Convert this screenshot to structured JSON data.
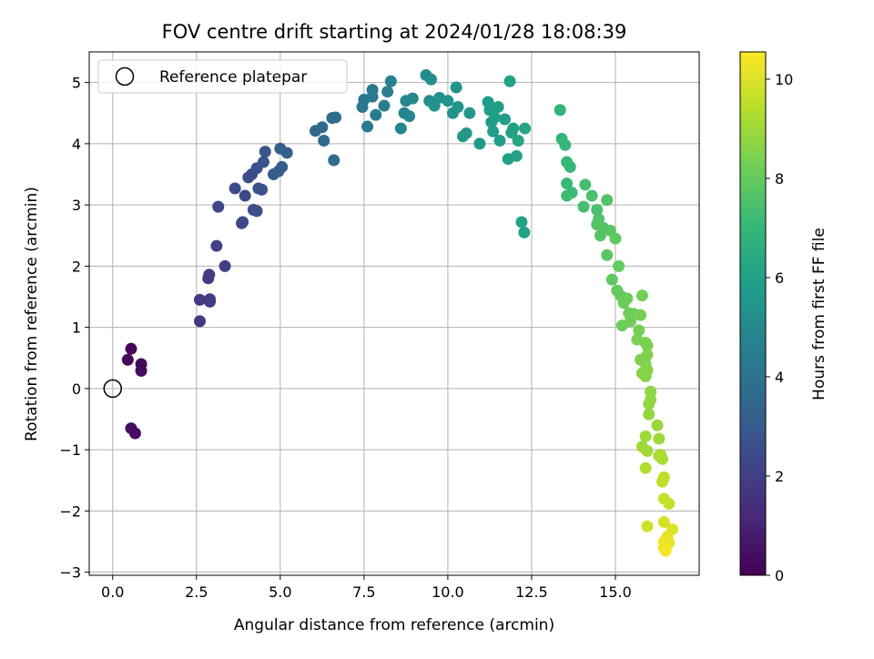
{
  "chart_data": {
    "type": "scatter",
    "title": "FOV centre drift starting at 2024/01/28 18:08:39",
    "xlabel": "Angular distance from reference (arcmin)",
    "ylabel": "Rotation from reference (arcmin)",
    "xlim": [
      -0.7,
      17.5
    ],
    "ylim": [
      -3.05,
      5.5
    ],
    "xticks": [
      0.0,
      2.5,
      5.0,
      7.5,
      10.0,
      12.5,
      15.0
    ],
    "xtick_labels": [
      "0.0",
      "2.5",
      "5.0",
      "7.5",
      "10.0",
      "12.5",
      "15.0"
    ],
    "yticks": [
      -3,
      -2,
      -1,
      0,
      1,
      2,
      3,
      4,
      5
    ],
    "ytick_labels": [
      "−3",
      "−2",
      "−1",
      "0",
      "1",
      "2",
      "3",
      "4",
      "5"
    ],
    "grid": true,
    "legend": {
      "position": "top-left",
      "label": "Reference platepar"
    },
    "reference_point": {
      "x": 0,
      "y": 0
    },
    "colorbar": {
      "label": "Hours from first FF file",
      "min": 0,
      "max": 10.55,
      "ticks": [
        0,
        2,
        4,
        6,
        8,
        10
      ],
      "tick_labels": [
        "0",
        "2",
        "4",
        "6",
        "8",
        "10"
      ],
      "colormap": "viridis",
      "colormap_stops": [
        "#440154",
        "#482878",
        "#3e4989",
        "#31688e",
        "#26828e",
        "#1f9e89",
        "#35b779",
        "#6ece58",
        "#b5de2b",
        "#fde725"
      ]
    },
    "points": [
      [
        0.55,
        0.65,
        0.2
      ],
      [
        0.45,
        0.47,
        0.2
      ],
      [
        0.85,
        0.4,
        0.3
      ],
      [
        0.85,
        0.29,
        0.3
      ],
      [
        0.55,
        -0.65,
        0.35
      ],
      [
        0.67,
        -0.73,
        0.4
      ],
      [
        2.6,
        1.1,
        1.8
      ],
      [
        2.6,
        1.45,
        1.8
      ],
      [
        2.9,
        1.42,
        1.9
      ],
      [
        2.9,
        1.46,
        1.9
      ],
      [
        2.85,
        1.8,
        1.9
      ],
      [
        2.88,
        1.86,
        1.9
      ],
      [
        3.35,
        2.0,
        2.0
      ],
      [
        3.1,
        2.33,
        2.1
      ],
      [
        3.15,
        2.97,
        2.2
      ],
      [
        3.85,
        2.7,
        2.3
      ],
      [
        3.88,
        2.72,
        2.3
      ],
      [
        3.65,
        3.27,
        2.4
      ],
      [
        3.95,
        3.15,
        2.4
      ],
      [
        4.05,
        3.45,
        2.5
      ],
      [
        4.15,
        3.5,
        2.5
      ],
      [
        4.3,
        3.6,
        2.6
      ],
      [
        4.2,
        2.92,
        2.5
      ],
      [
        4.3,
        2.9,
        2.6
      ],
      [
        4.35,
        3.27,
        2.7
      ],
      [
        4.45,
        3.25,
        2.7
      ],
      [
        4.5,
        3.7,
        2.8
      ],
      [
        4.55,
        3.87,
        2.8
      ],
      [
        4.8,
        3.5,
        3.0
      ],
      [
        4.95,
        3.55,
        3.1
      ],
      [
        5.05,
        3.62,
        3.1
      ],
      [
        5.0,
        3.92,
        3.1
      ],
      [
        5.2,
        3.85,
        3.2
      ],
      [
        6.05,
        4.21,
        3.5
      ],
      [
        6.25,
        4.27,
        3.6
      ],
      [
        6.3,
        4.05,
        3.6
      ],
      [
        6.55,
        4.42,
        3.7
      ],
      [
        6.65,
        4.43,
        3.7
      ],
      [
        6.6,
        3.73,
        3.7
      ],
      [
        7.45,
        4.6,
        4.2
      ],
      [
        7.5,
        4.72,
        4.2
      ],
      [
        7.6,
        4.28,
        4.3
      ],
      [
        7.75,
        4.88,
        4.3
      ],
      [
        7.75,
        4.77,
        4.3
      ],
      [
        7.85,
        4.47,
        4.4
      ],
      [
        8.1,
        4.62,
        4.5
      ],
      [
        8.2,
        4.85,
        4.5
      ],
      [
        8.3,
        5.02,
        4.6
      ],
      [
        8.6,
        4.25,
        4.8
      ],
      [
        8.7,
        4.5,
        4.8
      ],
      [
        8.75,
        4.7,
        4.9
      ],
      [
        8.85,
        4.45,
        4.9
      ],
      [
        8.95,
        4.74,
        5.0
      ],
      [
        9.35,
        5.12,
        5.1
      ],
      [
        9.45,
        4.7,
        5.2
      ],
      [
        9.5,
        5.05,
        5.2
      ],
      [
        9.6,
        4.62,
        5.3
      ],
      [
        9.75,
        4.75,
        5.3
      ],
      [
        10.0,
        4.7,
        5.4
      ],
      [
        10.15,
        4.5,
        5.5
      ],
      [
        10.25,
        4.92,
        5.5
      ],
      [
        10.3,
        4.6,
        5.5
      ],
      [
        10.45,
        4.12,
        5.6
      ],
      [
        10.55,
        4.17,
        5.6
      ],
      [
        10.65,
        4.5,
        5.6
      ],
      [
        10.95,
        4.0,
        5.7
      ],
      [
        11.2,
        4.68,
        5.8
      ],
      [
        11.25,
        4.55,
        5.8
      ],
      [
        11.3,
        4.35,
        5.8
      ],
      [
        11.35,
        4.2,
        5.9
      ],
      [
        11.4,
        4.43,
        5.9
      ],
      [
        11.5,
        4.6,
        5.9
      ],
      [
        11.55,
        4.05,
        5.9
      ],
      [
        11.7,
        4.4,
        5.9
      ],
      [
        11.8,
        3.75,
        6.0
      ],
      [
        11.9,
        4.18,
        6.0
      ],
      [
        11.95,
        4.25,
        6.0
      ],
      [
        12.05,
        3.8,
        6.1
      ],
      [
        12.2,
        2.72,
        6.1
      ],
      [
        12.28,
        2.55,
        6.1
      ],
      [
        12.3,
        4.25,
        6.2
      ],
      [
        12.1,
        4.05,
        6.2
      ],
      [
        11.85,
        5.02,
        6.1
      ],
      [
        13.35,
        4.55,
        6.9
      ],
      [
        13.4,
        4.08,
        7.0
      ],
      [
        13.5,
        3.98,
        7.0
      ],
      [
        13.55,
        3.7,
        7.0
      ],
      [
        13.65,
        3.62,
        7.1
      ],
      [
        13.55,
        3.35,
        7.1
      ],
      [
        13.55,
        3.15,
        7.2
      ],
      [
        13.7,
        3.2,
        7.2
      ],
      [
        14.05,
        2.97,
        7.4
      ],
      [
        14.1,
        3.33,
        7.4
      ],
      [
        14.3,
        3.15,
        7.5
      ],
      [
        14.45,
        2.92,
        7.5
      ],
      [
        14.5,
        2.77,
        7.6
      ],
      [
        14.65,
        2.62,
        7.6
      ],
      [
        14.75,
        3.08,
        7.6
      ],
      [
        14.45,
        2.68,
        7.7
      ],
      [
        14.55,
        2.5,
        7.7
      ],
      [
        14.75,
        2.18,
        7.8
      ],
      [
        14.85,
        2.58,
        7.8
      ],
      [
        15.0,
        2.45,
        7.9
      ],
      [
        14.9,
        1.78,
        7.9
      ],
      [
        15.1,
        2.0,
        8.0
      ],
      [
        15.05,
        1.6,
        8.0
      ],
      [
        15.15,
        1.52,
        8.0
      ],
      [
        15.25,
        1.4,
        8.1
      ],
      [
        15.35,
        1.47,
        8.1
      ],
      [
        15.2,
        1.03,
        8.1
      ],
      [
        15.4,
        1.23,
        8.2
      ],
      [
        15.45,
        1.1,
        8.2
      ],
      [
        15.55,
        1.22,
        8.2
      ],
      [
        15.7,
        0.95,
        8.3
      ],
      [
        15.75,
        1.2,
        8.3
      ],
      [
        15.8,
        1.52,
        8.3
      ],
      [
        15.65,
        0.8,
        8.4
      ],
      [
        15.9,
        0.75,
        8.4
      ],
      [
        15.95,
        0.7,
        8.4
      ],
      [
        15.9,
        0.4,
        8.5
      ],
      [
        15.95,
        0.55,
        8.5
      ],
      [
        15.75,
        0.47,
        8.5
      ],
      [
        15.8,
        0.25,
        8.6
      ],
      [
        15.95,
        0.3,
        8.6
      ],
      [
        15.9,
        0.2,
        8.6
      ],
      [
        16.05,
        -0.05,
        8.7
      ],
      [
        16.0,
        -0.25,
        8.8
      ],
      [
        16.05,
        -0.18,
        8.8
      ],
      [
        16.0,
        -0.42,
        8.8
      ],
      [
        16.25,
        -0.6,
        8.9
      ],
      [
        16.3,
        -0.82,
        9.0
      ],
      [
        15.9,
        -0.78,
        9.0
      ],
      [
        15.8,
        -0.95,
        9.0
      ],
      [
        15.95,
        -1.02,
        9.1
      ],
      [
        16.3,
        -1.1,
        9.2
      ],
      [
        16.35,
        -1.08,
        9.2
      ],
      [
        16.4,
        -1.15,
        9.2
      ],
      [
        15.9,
        -1.3,
        9.3
      ],
      [
        16.45,
        -1.45,
        9.5
      ],
      [
        16.4,
        -1.52,
        9.5
      ],
      [
        16.45,
        -1.8,
        9.6
      ],
      [
        16.6,
        -1.88,
        9.6
      ],
      [
        15.95,
        -2.25,
        9.8
      ],
      [
        16.45,
        -2.18,
        9.9
      ],
      [
        16.7,
        -2.3,
        10.0
      ],
      [
        16.55,
        -2.42,
        10.1
      ],
      [
        16.6,
        -2.52,
        10.2
      ],
      [
        16.45,
        -2.6,
        10.3
      ],
      [
        16.5,
        -2.65,
        10.4
      ],
      [
        16.45,
        -2.5,
        10.3
      ]
    ]
  }
}
